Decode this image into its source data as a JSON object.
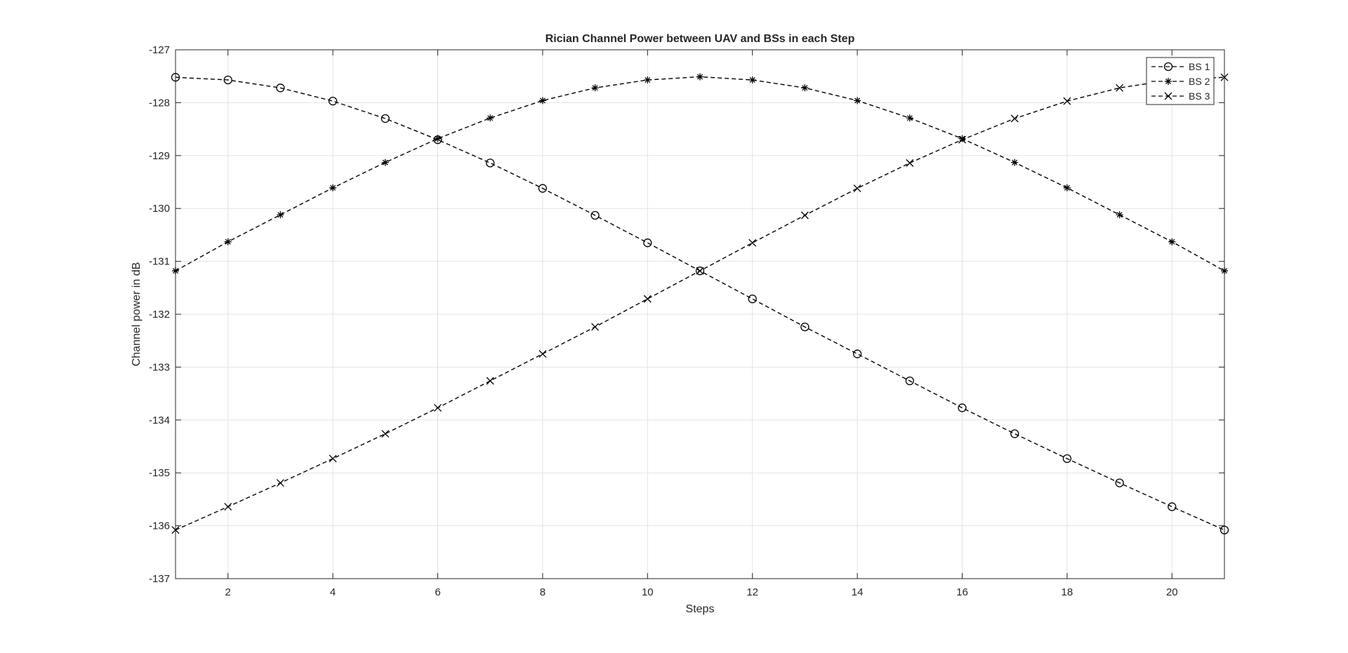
{
  "chart_data": {
    "type": "line",
    "title": "Rician Channel Power between UAV and BSs in each Step",
    "xlabel": "Steps",
    "ylabel": "Channel power in dB",
    "xlim": [
      1,
      21
    ],
    "ylim": [
      -137,
      -127
    ],
    "xticks": [
      2,
      4,
      6,
      8,
      10,
      12,
      14,
      16,
      18,
      20
    ],
    "yticks": [
      -127,
      -128,
      -129,
      -130,
      -131,
      -132,
      -133,
      -134,
      -135,
      -136,
      -137
    ],
    "grid": true,
    "legend_position": "top-right",
    "line_style": "dashed",
    "line_color": "#000000",
    "x": [
      1,
      2,
      3,
      4,
      5,
      6,
      7,
      8,
      9,
      10,
      11,
      12,
      13,
      14,
      15,
      16,
      17,
      18,
      19,
      20,
      21
    ],
    "series": [
      {
        "name": "BS 1",
        "marker": "circle",
        "values": [
          -127.52,
          -127.57,
          -127.72,
          -127.97,
          -128.3,
          -128.7,
          -129.14,
          -129.62,
          -130.13,
          -130.65,
          -131.18,
          -131.71,
          -132.24,
          -132.75,
          -133.26,
          -133.77,
          -134.26,
          -134.73,
          -135.19,
          -135.64,
          -136.08
        ]
      },
      {
        "name": "BS 2",
        "marker": "asterisk",
        "values": [
          -131.18,
          -130.63,
          -130.12,
          -129.61,
          -129.13,
          -128.68,
          -128.29,
          -127.96,
          -127.72,
          -127.57,
          -127.51,
          -127.57,
          -127.72,
          -127.96,
          -128.29,
          -128.68,
          -129.13,
          -129.61,
          -130.12,
          -130.63,
          -131.18
        ]
      },
      {
        "name": "BS 3",
        "marker": "x",
        "values": [
          -136.08,
          -135.64,
          -135.19,
          -134.73,
          -134.26,
          -133.77,
          -133.26,
          -132.75,
          -132.24,
          -131.71,
          -131.18,
          -130.65,
          -130.13,
          -129.62,
          -129.14,
          -128.7,
          -128.3,
          -127.97,
          -127.72,
          -127.57,
          -127.52
        ]
      }
    ]
  }
}
